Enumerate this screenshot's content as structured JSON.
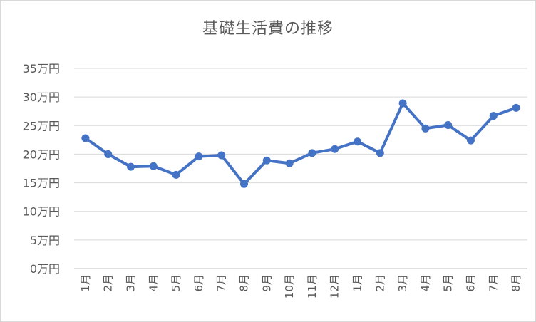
{
  "chart_data": {
    "type": "line",
    "title": "基礎生活費の推移",
    "xlabel": "",
    "ylabel": "",
    "categories": [
      "1月",
      "2月",
      "3月",
      "4月",
      "5月",
      "6月",
      "7月",
      "8月",
      "9月",
      "10月",
      "11月",
      "12月",
      "1月",
      "2月",
      "3月",
      "4月",
      "5月",
      "6月",
      "7月",
      "8月"
    ],
    "series": [
      {
        "values": [
          22.8,
          20.0,
          17.8,
          17.9,
          16.4,
          19.6,
          19.8,
          14.8,
          18.9,
          18.4,
          20.2,
          20.9,
          22.2,
          20.2,
          28.9,
          24.5,
          25.1,
          22.4,
          26.7,
          28.1
        ],
        "color": "#4472c4"
      }
    ],
    "ylim": [
      0,
      35
    ],
    "yticks": [
      "0万円",
      "5万円",
      "10万円",
      "15万円",
      "20万円",
      "25万円",
      "30万円",
      "35万円"
    ],
    "grid": true,
    "legend": "none"
  }
}
